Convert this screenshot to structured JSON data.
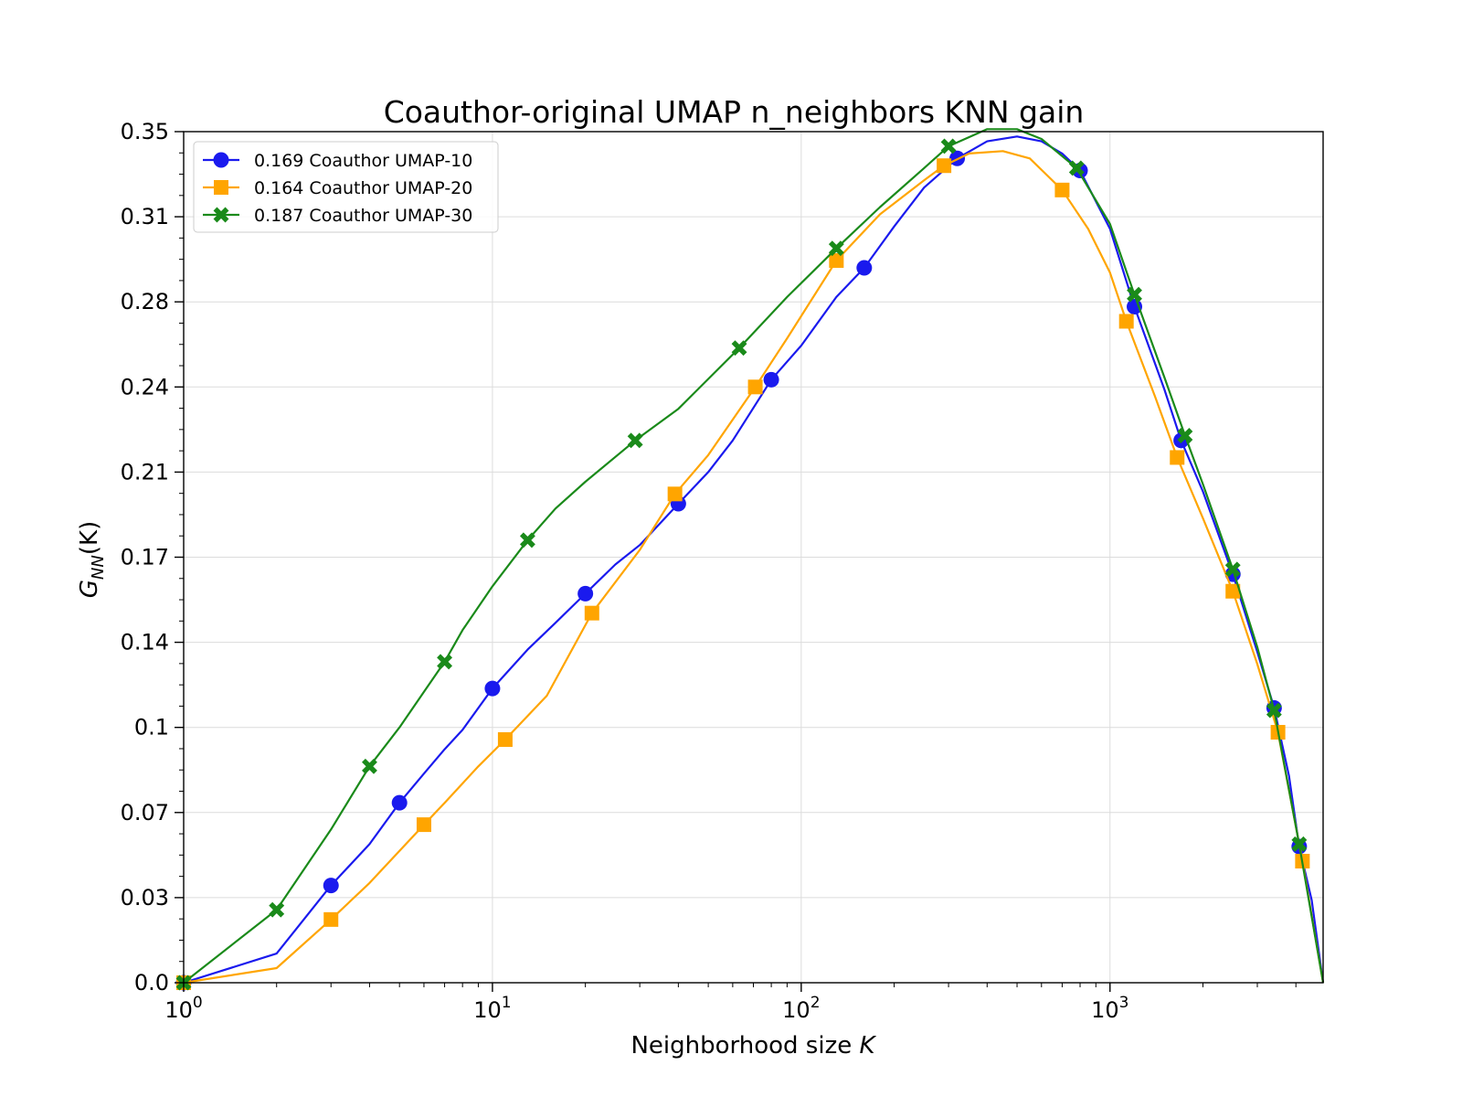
{
  "chart_data": {
    "type": "line",
    "title": "Coauthor-original UMAP n_neighbors KNN gain",
    "xlabel_text": "Neighborhood size ",
    "xlabel_var": "K",
    "ylabel_main": "G",
    "ylabel_sub": "NN",
    "ylabel_arg": "(K)",
    "xscale": "log",
    "xlim": [
      1,
      4900
    ],
    "ylim": [
      0,
      0.35
    ],
    "x_ticks": [
      {
        "value": 1,
        "base": "10",
        "exp": "0"
      },
      {
        "value": 10,
        "base": "10",
        "exp": "1"
      },
      {
        "value": 100,
        "base": "10",
        "exp": "2"
      },
      {
        "value": 1000,
        "base": "10",
        "exp": "3"
      }
    ],
    "y_ticks": [
      {
        "value": 0.0,
        "label": "0.0"
      },
      {
        "value": 0.035,
        "label": "0.03"
      },
      {
        "value": 0.07,
        "label": "0.07"
      },
      {
        "value": 0.105,
        "label": "0.1"
      },
      {
        "value": 0.14,
        "label": "0.14"
      },
      {
        "value": 0.175,
        "label": "0.17"
      },
      {
        "value": 0.21,
        "label": "0.21"
      },
      {
        "value": 0.245,
        "label": "0.24"
      },
      {
        "value": 0.28,
        "label": "0.28"
      },
      {
        "value": 0.315,
        "label": "0.31"
      },
      {
        "value": 0.35,
        "label": "0.35"
      }
    ],
    "grid": true,
    "legend_position": "top-left",
    "series": [
      {
        "name": "0.169 Coauthor UMAP-10",
        "color": "#1a1aee",
        "marker": "circle",
        "x": [
          1,
          2,
          3,
          4,
          5,
          6,
          7,
          8,
          10,
          13,
          16,
          20,
          25,
          30,
          40,
          50,
          60,
          80,
          100,
          130,
          160,
          200,
          250,
          320,
          400,
          500,
          600,
          700,
          800,
          1000,
          1200,
          1500,
          1700,
          2000,
          2500,
          3000,
          3400,
          3800,
          4100,
          4500,
          4900
        ],
        "y": [
          0.0,
          0.012,
          0.04,
          0.057,
          0.074,
          0.086,
          0.096,
          0.104,
          0.121,
          0.137,
          0.148,
          0.16,
          0.172,
          0.18,
          0.197,
          0.21,
          0.223,
          0.248,
          0.262,
          0.282,
          0.294,
          0.311,
          0.327,
          0.339,
          0.346,
          0.348,
          0.346,
          0.341,
          0.334,
          0.31,
          0.278,
          0.244,
          0.223,
          0.202,
          0.168,
          0.136,
          0.113,
          0.085,
          0.056,
          0.034,
          0.0
        ],
        "marker_indices": [
          0,
          2,
          4,
          8,
          11,
          14,
          17,
          20,
          23,
          28,
          30,
          32,
          34,
          36,
          38
        ]
      },
      {
        "name": "0.164 Coauthor UMAP-20",
        "color": "#ffa500",
        "marker": "square",
        "x": [
          1,
          2,
          3,
          4,
          6,
          7,
          9,
          11,
          15,
          21,
          30,
          39,
          50,
          71,
          90,
          130,
          180,
          250,
          290,
          350,
          450,
          550,
          700,
          850,
          1000,
          1130,
          1400,
          1650,
          2000,
          2500,
          3000,
          3500,
          4200,
          4900
        ],
        "y": [
          0.0,
          0.006,
          0.026,
          0.041,
          0.065,
          0.074,
          0.089,
          0.1,
          0.118,
          0.152,
          0.178,
          0.201,
          0.217,
          0.245,
          0.265,
          0.297,
          0.316,
          0.33,
          0.336,
          0.341,
          0.342,
          0.339,
          0.326,
          0.31,
          0.292,
          0.272,
          0.241,
          0.216,
          0.191,
          0.161,
          0.131,
          0.103,
          0.05,
          0.0
        ],
        "marker_indices": [
          0,
          2,
          4,
          7,
          9,
          11,
          13,
          15,
          18,
          22,
          25,
          27,
          29,
          31,
          32
        ]
      },
      {
        "name": "0.187 Coauthor UMAP-30",
        "color": "#1a8a1a",
        "marker": "x",
        "x": [
          1,
          2,
          3,
          4,
          5,
          7,
          8,
          10,
          13,
          16,
          20,
          29,
          40,
          63,
          90,
          130,
          180,
          250,
          300,
          400,
          500,
          600,
          780,
          1000,
          1200,
          1500,
          1750,
          2000,
          2500,
          3000,
          3400,
          4100,
          4900
        ],
        "y": [
          0.0,
          0.03,
          0.063,
          0.089,
          0.105,
          0.132,
          0.145,
          0.163,
          0.182,
          0.195,
          0.206,
          0.223,
          0.236,
          0.261,
          0.282,
          0.302,
          0.319,
          0.335,
          0.344,
          0.351,
          0.351,
          0.347,
          0.335,
          0.312,
          0.283,
          0.249,
          0.225,
          0.205,
          0.17,
          0.138,
          0.112,
          0.057,
          0.0
        ],
        "marker_indices": [
          0,
          1,
          3,
          5,
          8,
          11,
          13,
          15,
          18,
          22,
          24,
          26,
          28,
          30,
          31
        ]
      }
    ]
  }
}
